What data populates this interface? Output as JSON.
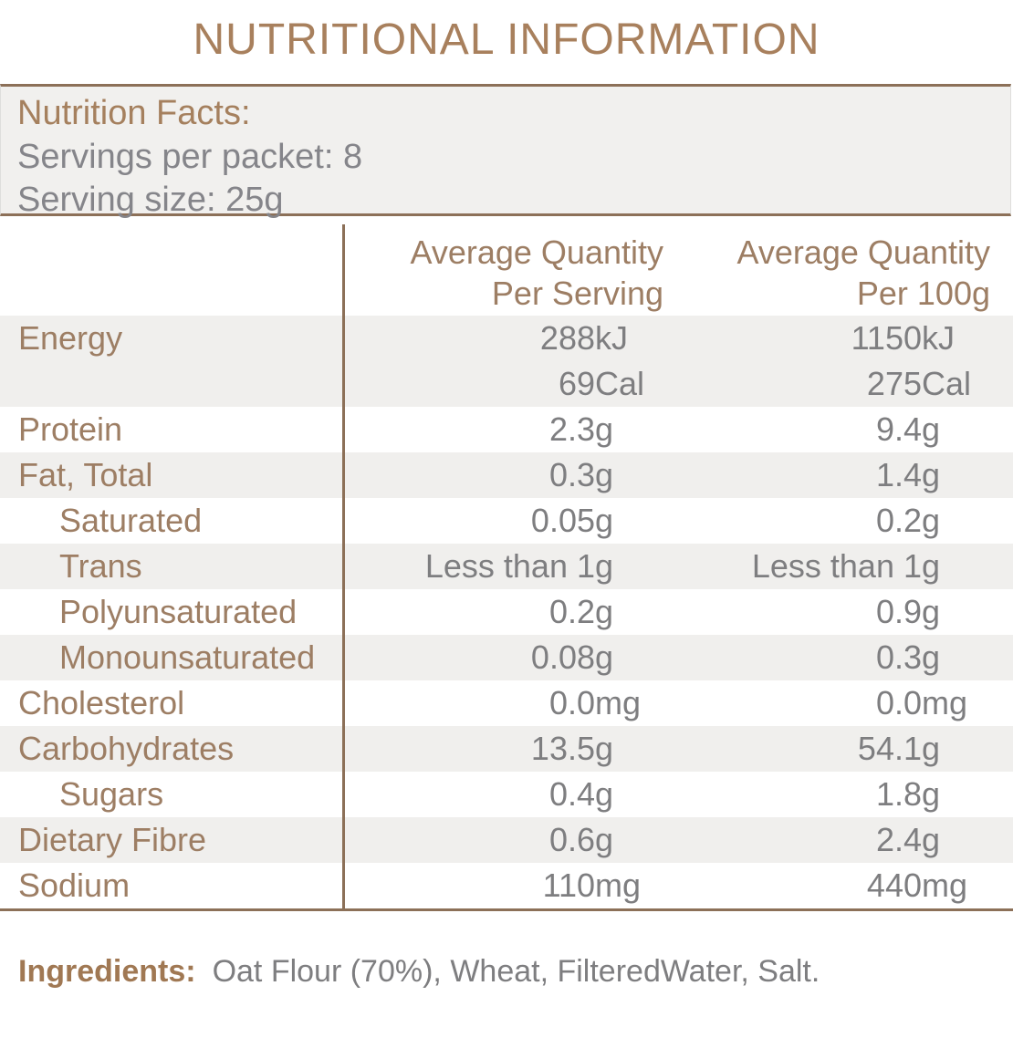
{
  "title": "NUTRITIONAL INFORMATION",
  "facts_panel": {
    "heading": "Nutrition Facts:",
    "servings_line": "Servings per packet: 8",
    "serving_size_line": "Serving size: 25g"
  },
  "table": {
    "columns": [
      {
        "line1": "Average Quantity",
        "line2": "Per Serving"
      },
      {
        "line1": "Average Quantity",
        "line2": "Per 100g"
      }
    ],
    "rows": [
      {
        "label": "Energy",
        "indent": false,
        "serving": {
          "num": "288",
          "unit": "kJ"
        },
        "per100": {
          "num": "1150",
          "unit": "kJ"
        }
      },
      {
        "label": "",
        "indent": false,
        "serving": {
          "num": "69",
          "unit": "Cal"
        },
        "per100": {
          "num": "275",
          "unit": "Cal"
        }
      },
      {
        "label": "Protein",
        "indent": false,
        "serving": {
          "num": "2.3",
          "unit": "g"
        },
        "per100": {
          "num": "9.4",
          "unit": "g"
        }
      },
      {
        "label": "Fat, Total",
        "indent": false,
        "serving": {
          "num": "0.3",
          "unit": "g"
        },
        "per100": {
          "num": "1.4",
          "unit": "g"
        }
      },
      {
        "label": "Saturated",
        "indent": true,
        "serving": {
          "num": "0.05",
          "unit": "g"
        },
        "per100": {
          "num": "0.2",
          "unit": "g"
        }
      },
      {
        "label": "Trans",
        "indent": true,
        "serving": {
          "num": "Less than 1",
          "unit": "g"
        },
        "per100": {
          "num": "Less than 1",
          "unit": "g"
        }
      },
      {
        "label": "Polyunsaturated",
        "indent": true,
        "serving": {
          "num": "0.2",
          "unit": "g"
        },
        "per100": {
          "num": "0.9",
          "unit": "g"
        }
      },
      {
        "label": "Monounsaturated",
        "indent": true,
        "serving": {
          "num": "0.08",
          "unit": "g"
        },
        "per100": {
          "num": "0.3",
          "unit": "g"
        }
      },
      {
        "label": "Cholesterol",
        "indent": false,
        "serving": {
          "num": "0.0",
          "unit": "mg"
        },
        "per100": {
          "num": "0.0",
          "unit": "mg"
        }
      },
      {
        "label": "Carbohydrates",
        "indent": false,
        "serving": {
          "num": "13.5",
          "unit": "g"
        },
        "per100": {
          "num": "54.1",
          "unit": "g"
        }
      },
      {
        "label": "Sugars",
        "indent": true,
        "serving": {
          "num": "0.4",
          "unit": "g"
        },
        "per100": {
          "num": "1.8",
          "unit": "g"
        }
      },
      {
        "label": "Dietary Fibre",
        "indent": false,
        "serving": {
          "num": "0.6",
          "unit": "g"
        },
        "per100": {
          "num": "2.4",
          "unit": "g"
        }
      },
      {
        "label": "Sodium",
        "indent": false,
        "serving": {
          "num": "110",
          "unit": "mg"
        },
        "per100": {
          "num": "440",
          "unit": "mg"
        }
      }
    ]
  },
  "ingredients": {
    "label": "Ingredients:",
    "text": "Oat Flour (70%), Wheat, FilteredWater, Salt."
  },
  "colors": {
    "title_brown": "#A8805D",
    "label_brown": "#9D7E64",
    "border_brown": "#8C7058",
    "value_gray": "#7E7E80",
    "panel_text_gray": "#85858A",
    "stripe_gray": "#F0EFED",
    "panel_bg": "#F1F0EE",
    "ingredients_label_brown": "#A07853"
  }
}
